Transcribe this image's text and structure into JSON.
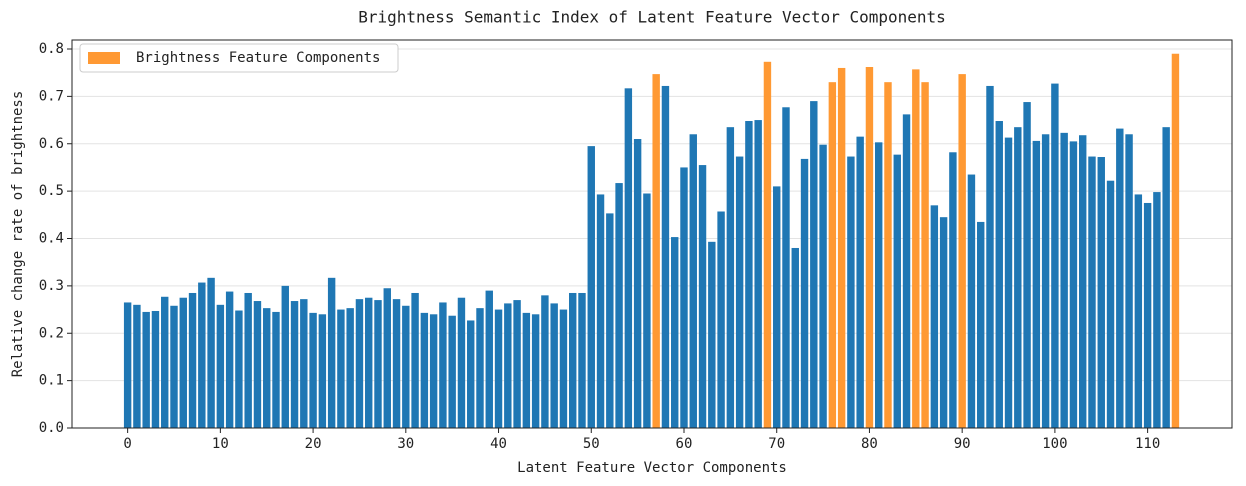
{
  "chart_data": {
    "type": "bar",
    "title": "Brightness Semantic Index of Latent Feature Vector Components",
    "x_label": "Latent Feature Vector Components",
    "y_label": "Relative change rate of brightness",
    "x": [
      0,
      1,
      2,
      3,
      4,
      5,
      6,
      7,
      8,
      9,
      10,
      11,
      12,
      13,
      14,
      15,
      16,
      17,
      18,
      19,
      20,
      21,
      22,
      23,
      24,
      25,
      26,
      27,
      28,
      29,
      30,
      31,
      32,
      33,
      34,
      35,
      36,
      37,
      38,
      39,
      40,
      41,
      42,
      43,
      44,
      45,
      46,
      47,
      48,
      49,
      50,
      51,
      52,
      53,
      54,
      55,
      56,
      57,
      58,
      59,
      60,
      61,
      62,
      63,
      64,
      65,
      66,
      67,
      68,
      69,
      70,
      71,
      72,
      73,
      74,
      75,
      76,
      77,
      78,
      79,
      80,
      81,
      82,
      83,
      84,
      85,
      86,
      87,
      88,
      89,
      90,
      91,
      92,
      93,
      94,
      95,
      96,
      97,
      98,
      99,
      100,
      101,
      102,
      103,
      104,
      105,
      106,
      107,
      108,
      109,
      110,
      111,
      112,
      113
    ],
    "values": [
      0.265,
      0.26,
      0.245,
      0.247,
      0.277,
      0.258,
      0.275,
      0.285,
      0.307,
      0.317,
      0.26,
      0.288,
      0.248,
      0.285,
      0.268,
      0.253,
      0.245,
      0.3,
      0.268,
      0.272,
      0.243,
      0.24,
      0.317,
      0.25,
      0.253,
      0.272,
      0.275,
      0.27,
      0.295,
      0.272,
      0.258,
      0.285,
      0.243,
      0.24,
      0.265,
      0.237,
      0.275,
      0.227,
      0.253,
      0.29,
      0.25,
      0.263,
      0.27,
      0.243,
      0.24,
      0.28,
      0.263,
      0.25,
      0.285,
      0.285,
      0.595,
      0.493,
      0.453,
      0.517,
      0.717,
      0.61,
      0.495,
      0.747,
      0.722,
      0.403,
      0.55,
      0.62,
      0.555,
      0.393,
      0.457,
      0.635,
      0.573,
      0.648,
      0.65,
      0.773,
      0.51,
      0.677,
      0.38,
      0.568,
      0.69,
      0.598,
      0.73,
      0.76,
      0.573,
      0.615,
      0.762,
      0.603,
      0.73,
      0.577,
      0.662,
      0.757,
      0.73,
      0.47,
      0.445,
      0.582,
      0.747,
      0.535,
      0.435,
      0.722,
      0.648,
      0.613,
      0.635,
      0.688,
      0.606,
      0.62,
      0.727,
      0.623,
      0.605,
      0.618,
      0.573,
      0.572,
      0.522,
      0.632,
      0.62,
      0.493,
      0.475,
      0.498,
      0.635,
      0.79
    ],
    "color": "#1f77b4",
    "highlight": {
      "name": "Brightness Feature Components",
      "color": "#ff9933",
      "indices": [
        57,
        69,
        76,
        77,
        80,
        82,
        85,
        86,
        90,
        113
      ]
    },
    "xlim": [
      -6,
      119.1
    ],
    "xticks": [
      0,
      10,
      20,
      30,
      40,
      50,
      60,
      70,
      80,
      90,
      100,
      110
    ],
    "ylim": [
      0,
      0.819
    ],
    "yticks": [
      {
        "value": 0,
        "label": "0.0"
      },
      0.1,
      0.2,
      0.3,
      0.4,
      0.5,
      0.6,
      0.7,
      0.8
    ],
    "grid": true,
    "legend": "upper-left"
  }
}
